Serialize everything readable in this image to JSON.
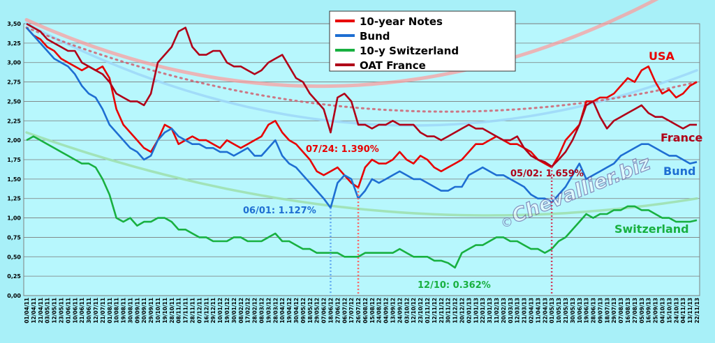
{
  "chart_data": {
    "type": "line",
    "title": "",
    "xlabel": "",
    "ylabel": "",
    "ylim": [
      0,
      3.5
    ],
    "y_ticks": [
      "0,00",
      "0,25",
      "0,50",
      "0,75",
      "1,00",
      "1,25",
      "1,50",
      "1,75",
      "2,00",
      "2,25",
      "2,50",
      "2,75",
      "3,00",
      "3,25",
      "3,50"
    ],
    "x_ticks": [
      "01/04/11",
      "12/04/11",
      "21/04/11",
      "03/05/11",
      "12/05/11",
      "23/05/11",
      "01/06/11",
      "10/06/11",
      "21/06/11",
      "30/06/11",
      "12/07/11",
      "21/07/11",
      "01/08/11",
      "10/08/11",
      "19/08/11",
      "30/08/11",
      "09/09/11",
      "20/09/11",
      "29/09/11",
      "10/10/11",
      "19/10/11",
      "28/10/11",
      "08/11/11",
      "17/11/11",
      "28/11/11",
      "07/12/11",
      "16/12/11",
      "29/12/11",
      "10/01/12",
      "19/01/12",
      "30/01/12",
      "08/02/12",
      "17/02/12",
      "28/02/12",
      "08/03/12",
      "19/03/12",
      "28/03/12",
      "10/04/12",
      "19/04/12",
      "30/04/12",
      "09/05/12",
      "18/05/12",
      "29/05/12",
      "07/06/12",
      "18/06/12",
      "27/06/12",
      "06/07/12",
      "17/07/12",
      "26/07/12",
      "06/08/12",
      "15/08/12",
      "24/08/12",
      "04/09/12",
      "13/09/12",
      "24/09/12",
      "03/10/12",
      "12/10/12",
      "23/10/12",
      "01/11/12",
      "12/11/12",
      "21/11/12",
      "30/11/12",
      "11/12/12",
      "20/12/12",
      "02/01/13",
      "11/01/13",
      "22/01/13",
      "31/01/13",
      "11/02/13",
      "20/02/13",
      "01/03/13",
      "12/03/13",
      "21/03/13",
      "02/04/13",
      "11/04/13",
      "22/04/13",
      "01/05/13",
      "10/05/13",
      "21/05/13",
      "30/05/13",
      "10/06/13",
      "19/06/13",
      "28/06/13",
      "09/07/13",
      "18/07/13",
      "29/07/13",
      "07/08/13",
      "16/08/13",
      "27/08/13",
      "05/09/13",
      "16/09/13",
      "25/09/13",
      "04/10/13",
      "15/10/13",
      "24/10/13",
      "04/11/13",
      "13/11/13",
      "22/11/13"
    ],
    "grid": true,
    "legend_position": "top-center",
    "series": [
      {
        "name": "10-year Notes",
        "color": "#e80000",
        "values": [
          3.45,
          3.35,
          3.3,
          3.2,
          3.15,
          3.05,
          3.0,
          2.95,
          2.9,
          2.95,
          2.9,
          2.95,
          2.8,
          2.4,
          2.2,
          2.1,
          2.0,
          1.9,
          1.85,
          2.0,
          2.2,
          2.15,
          1.95,
          2.0,
          2.05,
          2.0,
          2.0,
          1.95,
          1.9,
          2.0,
          1.95,
          1.9,
          1.95,
          2.0,
          2.05,
          2.2,
          2.25,
          2.1,
          2.0,
          1.95,
          1.85,
          1.75,
          1.6,
          1.55,
          1.6,
          1.65,
          1.55,
          1.45,
          1.39,
          1.65,
          1.75,
          1.7,
          1.7,
          1.75,
          1.85,
          1.75,
          1.7,
          1.8,
          1.75,
          1.65,
          1.6,
          1.65,
          1.7,
          1.75,
          1.85,
          1.95,
          1.95,
          2.0,
          2.05,
          2.0,
          1.95,
          1.95,
          1.9,
          1.85,
          1.75,
          1.7,
          1.65,
          1.8,
          2.0,
          2.1,
          2.2,
          2.5,
          2.5,
          2.55,
          2.55,
          2.6,
          2.7,
          2.8,
          2.75,
          2.9,
          2.95,
          2.75,
          2.6,
          2.65,
          2.55,
          2.6,
          2.7,
          2.75
        ]
      },
      {
        "name": "Bund",
        "color": "#1e6ed2",
        "values": [
          3.45,
          3.35,
          3.25,
          3.15,
          3.05,
          3.0,
          2.95,
          2.85,
          2.7,
          2.6,
          2.55,
          2.4,
          2.2,
          2.1,
          2.0,
          1.9,
          1.85,
          1.75,
          1.8,
          2.0,
          2.1,
          2.15,
          2.05,
          2.0,
          1.95,
          1.95,
          1.9,
          1.9,
          1.85,
          1.85,
          1.8,
          1.85,
          1.9,
          1.8,
          1.8,
          1.9,
          2.0,
          1.8,
          1.7,
          1.65,
          1.55,
          1.45,
          1.35,
          1.25,
          1.13,
          1.45,
          1.55,
          1.5,
          1.25,
          1.35,
          1.5,
          1.45,
          1.5,
          1.55,
          1.6,
          1.55,
          1.5,
          1.5,
          1.45,
          1.4,
          1.35,
          1.35,
          1.4,
          1.4,
          1.55,
          1.6,
          1.65,
          1.6,
          1.55,
          1.55,
          1.5,
          1.45,
          1.4,
          1.3,
          1.25,
          1.25,
          1.2,
          1.3,
          1.4,
          1.55,
          1.7,
          1.5,
          1.55,
          1.6,
          1.65,
          1.7,
          1.8,
          1.85,
          1.9,
          1.95,
          1.95,
          1.9,
          1.85,
          1.8,
          1.8,
          1.75,
          1.7,
          1.72
        ]
      },
      {
        "name": "10-y Switzerland",
        "color": "#18b040",
        "values": [
          2.0,
          2.05,
          2.0,
          1.95,
          1.9,
          1.85,
          1.8,
          1.75,
          1.7,
          1.7,
          1.65,
          1.5,
          1.3,
          1.0,
          0.95,
          1.0,
          0.9,
          0.95,
          0.95,
          1.0,
          1.0,
          0.95,
          0.85,
          0.85,
          0.8,
          0.75,
          0.75,
          0.7,
          0.7,
          0.7,
          0.75,
          0.75,
          0.7,
          0.7,
          0.7,
          0.75,
          0.8,
          0.7,
          0.7,
          0.65,
          0.6,
          0.6,
          0.55,
          0.55,
          0.55,
          0.55,
          0.5,
          0.5,
          0.5,
          0.55,
          0.55,
          0.55,
          0.55,
          0.55,
          0.6,
          0.55,
          0.5,
          0.5,
          0.5,
          0.45,
          0.45,
          0.42,
          0.36,
          0.55,
          0.6,
          0.65,
          0.65,
          0.7,
          0.75,
          0.75,
          0.7,
          0.7,
          0.65,
          0.6,
          0.6,
          0.55,
          0.6,
          0.7,
          0.75,
          0.85,
          0.95,
          1.05,
          1.0,
          1.05,
          1.05,
          1.1,
          1.1,
          1.15,
          1.15,
          1.1,
          1.1,
          1.05,
          1.0,
          1.0,
          0.95,
          0.95,
          0.95,
          0.97
        ]
      },
      {
        "name": "OAT France",
        "color": "#b00018",
        "values": [
          3.5,
          3.45,
          3.4,
          3.3,
          3.25,
          3.2,
          3.15,
          3.15,
          3.0,
          2.95,
          2.9,
          2.85,
          2.75,
          2.6,
          2.55,
          2.5,
          2.5,
          2.45,
          2.6,
          3.0,
          3.1,
          3.2,
          3.4,
          3.45,
          3.2,
          3.1,
          3.1,
          3.15,
          3.15,
          3.0,
          2.95,
          2.95,
          2.9,
          2.85,
          2.9,
          3.0,
          3.05,
          3.1,
          2.95,
          2.8,
          2.75,
          2.6,
          2.5,
          2.4,
          2.1,
          2.55,
          2.6,
          2.5,
          2.2,
          2.2,
          2.15,
          2.2,
          2.2,
          2.25,
          2.2,
          2.2,
          2.2,
          2.1,
          2.05,
          2.05,
          2.0,
          2.05,
          2.1,
          2.15,
          2.2,
          2.15,
          2.15,
          2.1,
          2.05,
          2.0,
          2.0,
          2.05,
          1.9,
          1.8,
          1.75,
          1.72,
          1.66,
          1.75,
          1.85,
          2.0,
          2.2,
          2.45,
          2.5,
          2.3,
          2.15,
          2.25,
          2.3,
          2.35,
          2.4,
          2.45,
          2.35,
          2.3,
          2.3,
          2.25,
          2.2,
          2.15,
          2.2,
          2.2
        ]
      }
    ],
    "legend": [
      "10-year Notes",
      "Bund",
      "10-y Switzerland",
      "OAT France"
    ],
    "labels": {
      "usa": "USA",
      "france": "France",
      "bund": "Bund",
      "switzerland": "Switzerland"
    },
    "annotations": [
      {
        "text": "07/24: 1.390%",
        "color": "#e80000"
      },
      {
        "text": "06/01: 1.127%",
        "color": "#1e6ed2"
      },
      {
        "text": "12/10: 0.362%",
        "color": "#18b040"
      },
      {
        "text": "05/02: 1.659%",
        "color": "#b00018"
      }
    ],
    "watermark": "Chevallier.biz",
    "watermark_symbol": "©"
  }
}
